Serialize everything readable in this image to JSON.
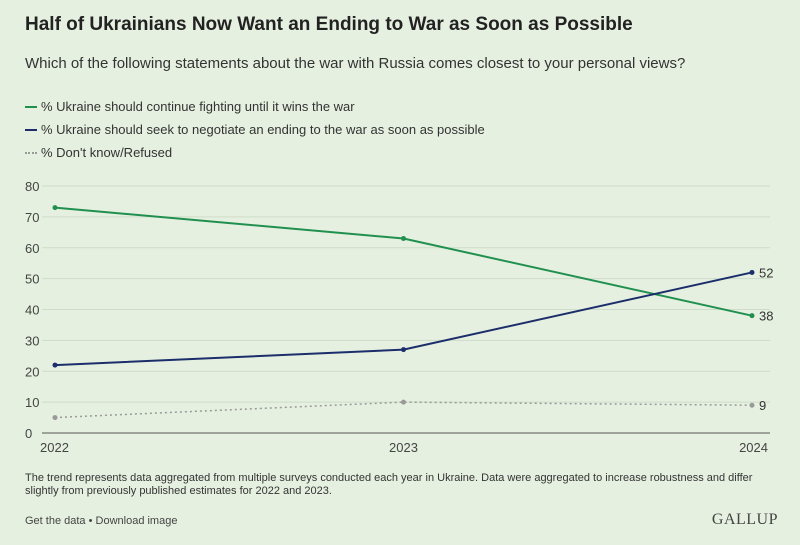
{
  "title": "Half of Ukrainians Now Want an Ending to War as Soon as Possible",
  "subtitle": "Which of the following statements about the war with Russia comes closest to your personal views?",
  "footnote": "The trend represents data aggregated from multiple surveys conducted each year in Ukraine. Data were aggregated to increase robustness and differ slightly from previously published estimates for 2022 and 2023.",
  "links": {
    "get_data": "Get the data",
    "separator": " • ",
    "download": "Download image"
  },
  "logo": "GALLUP",
  "chart_data": {
    "type": "line",
    "x": [
      "2022",
      "2023",
      "2024"
    ],
    "ylim": [
      0,
      80
    ],
    "yticks": [
      "0",
      "10",
      "20",
      "30",
      "40",
      "50",
      "60",
      "70",
      "80"
    ],
    "grid": true,
    "series": [
      {
        "name": "% Ukraine should continue fighting until it wins the war",
        "values": [
          73,
          63,
          38
        ],
        "color": "#21904f",
        "style": "solid",
        "end_label": "38"
      },
      {
        "name": "% Ukraine should seek to negotiate an ending to the war as soon as possible",
        "values": [
          22,
          27,
          52
        ],
        "color": "#1b2e6b",
        "style": "solid",
        "end_label": "52"
      },
      {
        "name": "% Don't know/Refused",
        "values": [
          5,
          10,
          9
        ],
        "color": "#999999",
        "style": "dotted",
        "end_label": "9"
      }
    ]
  }
}
